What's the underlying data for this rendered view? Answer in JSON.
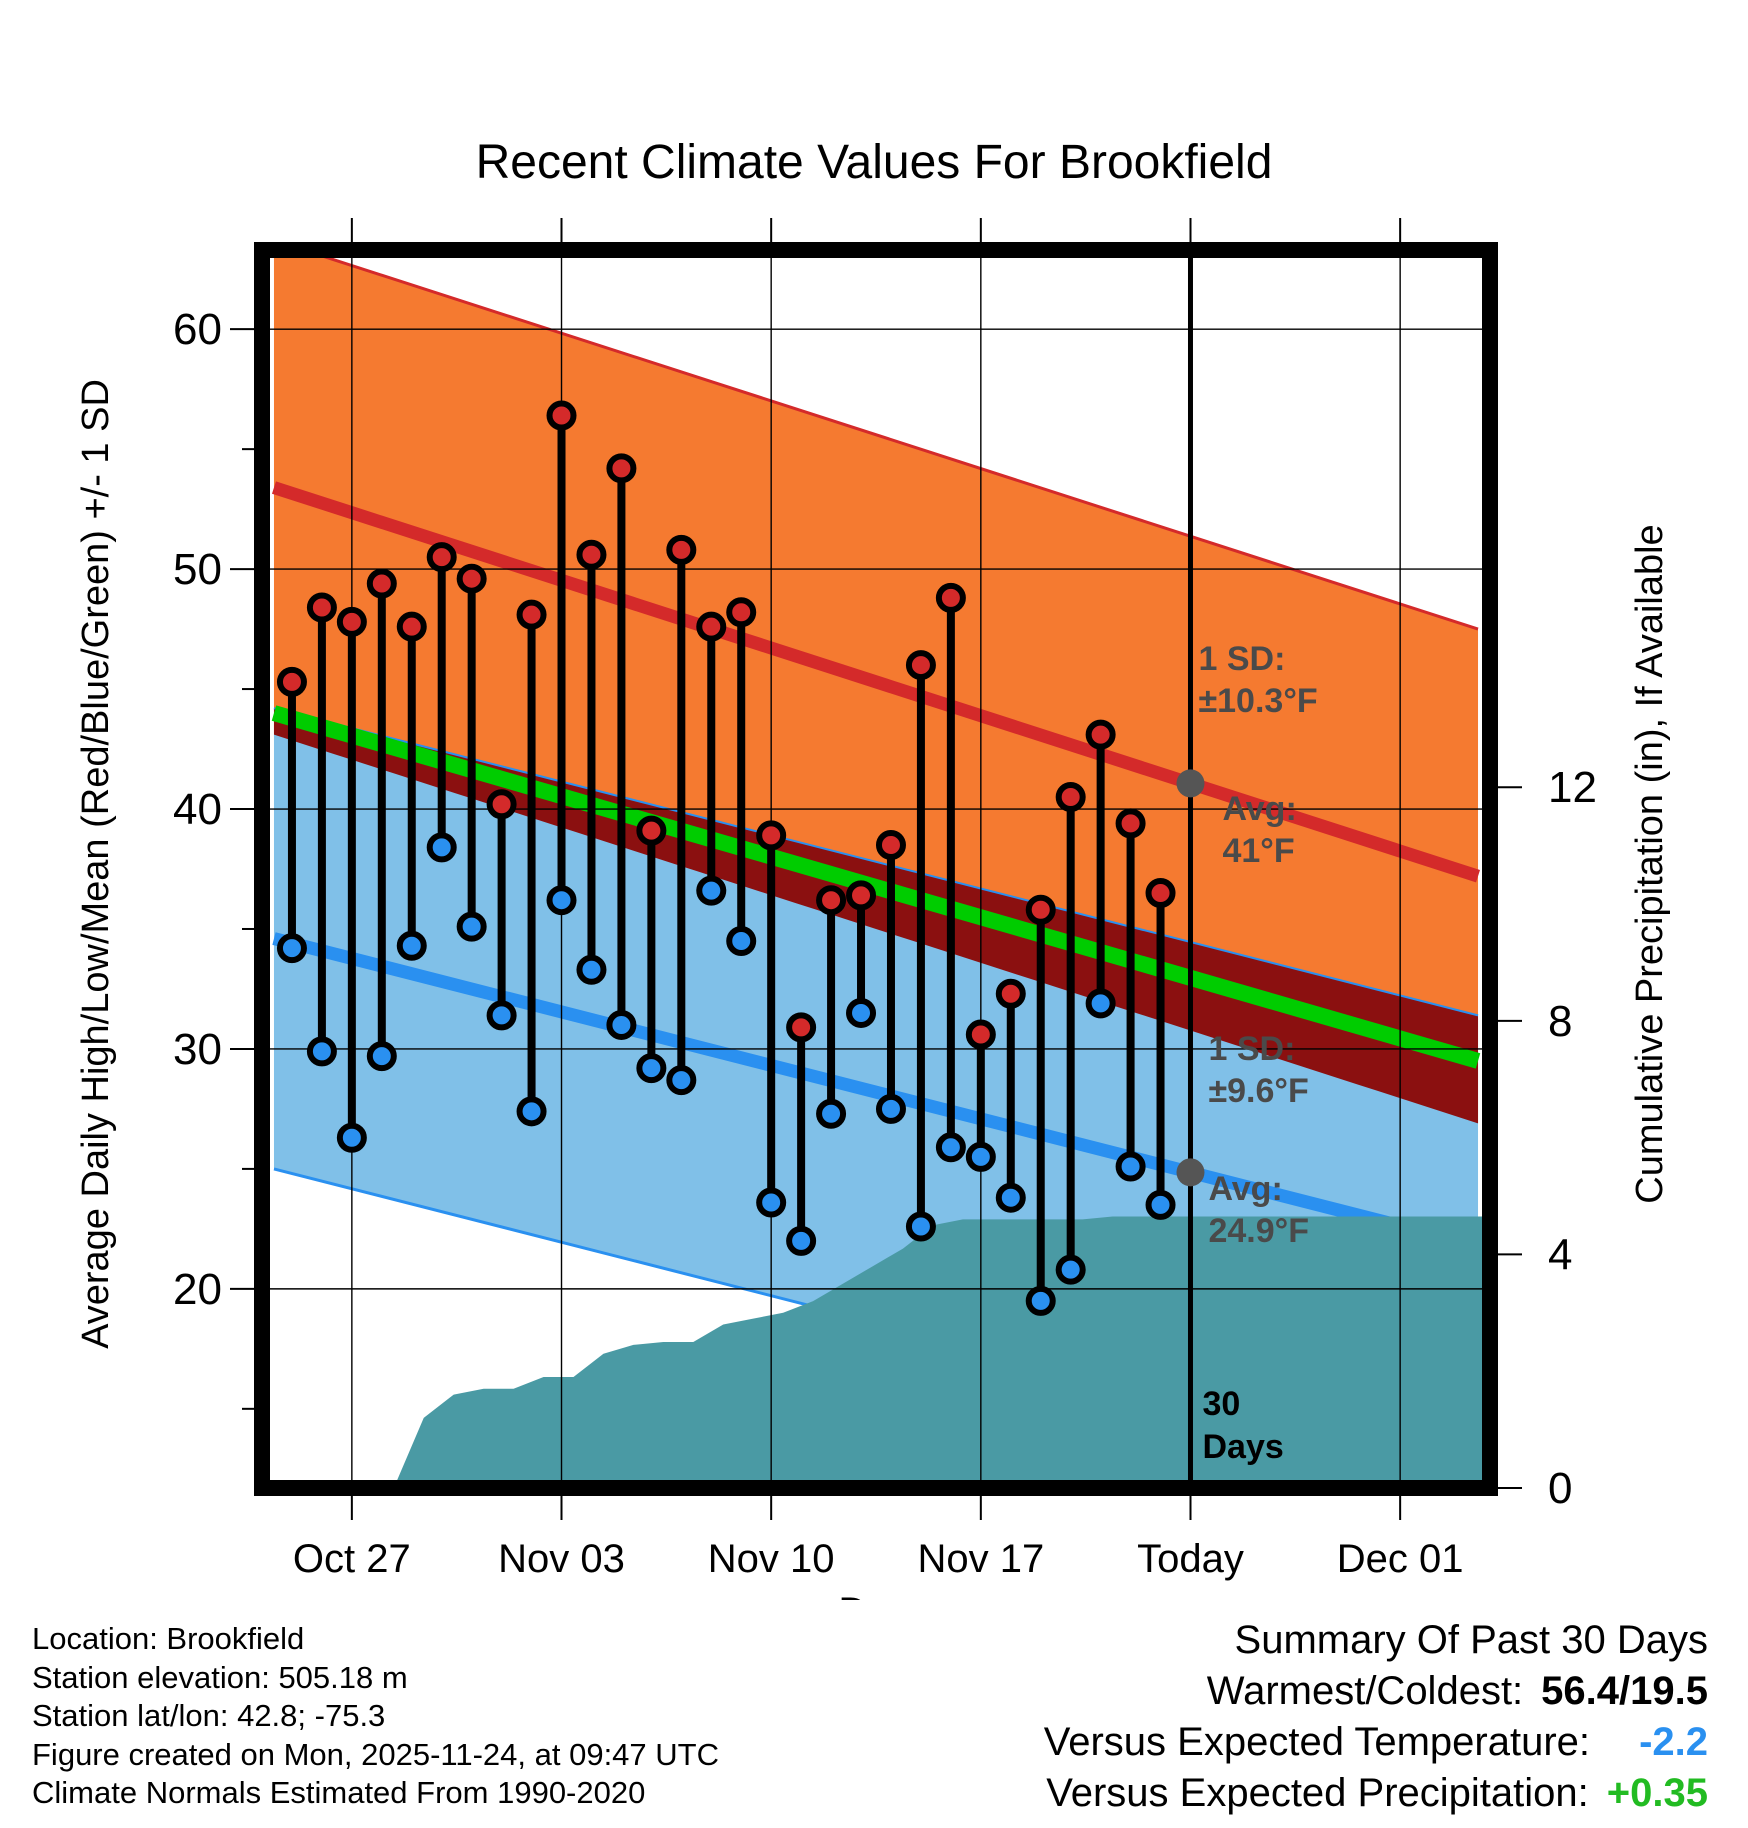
{
  "chart_data": {
    "type": "line",
    "title": "Recent Climate Values For Brookfield",
    "xlabel": "Day",
    "ylabel": "Average Daily High/Low/Mean (Red/Blue/Green) +/- 1 SD",
    "y2label": "Cumulative Precipitation (in), If Available",
    "xlim": [
      -3,
      38
    ],
    "ylim": [
      11.7,
      63.3
    ],
    "y2lim": [
      0,
      21.2
    ],
    "xticks": [
      {
        "x": 0,
        "label": "Oct 27"
      },
      {
        "x": 7,
        "label": "Nov 03"
      },
      {
        "x": 14,
        "label": "Nov 10"
      },
      {
        "x": 21,
        "label": "Nov 17"
      },
      {
        "x": 28,
        "label": "Today"
      },
      {
        "x": 35,
        "label": "Dec 01"
      }
    ],
    "yticks": [
      20,
      30,
      40,
      50,
      60
    ],
    "y2ticks": [
      0,
      4,
      8,
      12
    ],
    "normals": {
      "high_avg": [
        53.4,
        37.2
      ],
      "high_sd": 10.3,
      "low_avg": [
        34.6,
        21.8
      ],
      "low_sd": 9.6,
      "mean_avg": [
        44.0,
        29.5
      ],
      "x_range": [
        -2.6,
        37.6
      ]
    },
    "highs": [
      45.3,
      48.4,
      47.8,
      49.4,
      47.6,
      50.5,
      49.6,
      40.2,
      48.1,
      56.4,
      50.6,
      54.2,
      39.1,
      50.8,
      47.6,
      48.2,
      38.9,
      30.9,
      36.2,
      36.4,
      38.5,
      46.0,
      48.8,
      30.6,
      32.3,
      35.8,
      40.5,
      43.1,
      39.4,
      36.5
    ],
    "lows": [
      34.2,
      29.9,
      26.3,
      29.7,
      34.3,
      38.4,
      35.1,
      31.4,
      27.4,
      36.2,
      33.3,
      31.0,
      29.2,
      28.7,
      36.6,
      34.5,
      23.6,
      22.0,
      27.3,
      31.5,
      27.5,
      22.6,
      25.9,
      25.5,
      23.8,
      19.5,
      20.8,
      31.9,
      25.1,
      23.5
    ],
    "first_day_x": -2,
    "precip_cumulative": [
      0,
      0,
      0,
      0,
      0,
      1.2,
      1.6,
      1.7,
      1.7,
      1.9,
      1.9,
      2.3,
      2.45,
      2.5,
      2.5,
      2.8,
      2.9,
      3.0,
      3.2,
      3.5,
      3.8,
      4.1,
      4.5,
      4.6,
      4.6,
      4.6,
      4.6,
      4.6,
      4.65,
      4.65,
      4.65,
      4.65,
      4.65,
      4.65,
      4.65,
      4.65,
      4.65,
      4.65,
      4.65,
      4.65
    ],
    "precip_start_x": -2.6,
    "precip_step": 1,
    "today_x": 28,
    "annotations": {
      "high_sd_label_1": "1 SD:",
      "high_sd_label_2": "±10.3°F",
      "high_avg_label_1": "Avg:",
      "high_avg_label_2": "41°F",
      "low_sd_label_1": "1 SD:",
      "low_sd_label_2": "±9.6°F",
      "low_avg_label_1": "Avg:",
      "low_avg_label_2": "24.9°F",
      "window_label_1": "30",
      "window_label_2": "Days"
    },
    "colors": {
      "high_band": "#f57a30",
      "high_line": "#d42a2a",
      "low_band": "#80c0e8",
      "low_line": "#2a90f0",
      "mean_line": "#00cc00",
      "overlap": "#8b1010",
      "precip": "#4a9aa4",
      "high_dot": "#d42a2a",
      "low_dot": "#2a90f0",
      "annot": "#4a4a4a"
    }
  },
  "footer": {
    "location": "Location: Brookfield",
    "elevation": "Station elevation: 505.18 m",
    "latlon": "Station lat/lon: 42.8; -75.3",
    "created": "Figure created on Mon, 2025-11-24, at 09:47 UTC",
    "normals": "Climate Normals Estimated From 1990-2020"
  },
  "summary": {
    "title": "Summary Of Past 30 Days",
    "warm_cold_label": "Warmest/Coldest:",
    "warm_cold_value": "56.4/19.5",
    "temp_label": "Versus Expected Temperature:",
    "temp_value": "-2.2",
    "temp_color": "#2a90f0",
    "precip_label": "Versus Expected Precipitation:",
    "precip_value": "+0.35",
    "precip_color": "#22bb22"
  }
}
